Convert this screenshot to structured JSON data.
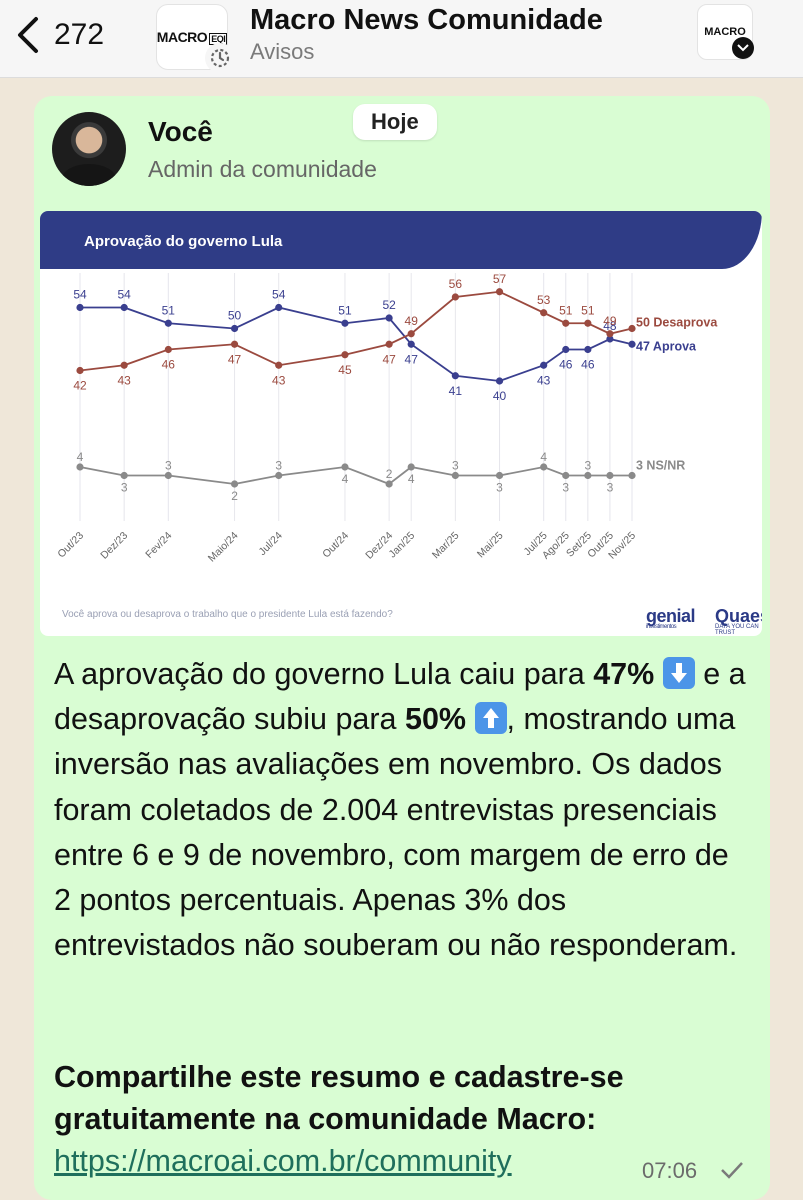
{
  "header": {
    "back_count": "272",
    "title": "Macro News Comunidade",
    "subtitle": "Avisos",
    "logo_text": "MACRO",
    "logo_badge": "EQI"
  },
  "message": {
    "sender": "Você",
    "role": "Admin da comunidade",
    "date_pill": "Hoje",
    "body_parts": [
      "A aprovação do governo Lula caiu para ",
      "47%",
      " e a desaprovação subiu para ",
      "50%",
      ", mostrando uma inversão nas avaliações em novembro. Os dados foram coletados de 2.004 entrevistas presenciais entre 6 e 9 de novembro, com margem de erro de 2 pontos percentuais. Apenas 3% dos entrevistados não souberam ou não responderam."
    ],
    "cta": "Compartilhe este resumo e cadastre-se gratuitamente na comunidade Macro:",
    "link": "https://macroai.com.br/community",
    "time": "07:06",
    "accent_bubble": "#d9fdd3",
    "link_color": "#1f6f5c"
  },
  "chart_data": {
    "type": "line",
    "title": "Aprovação do governo Lula",
    "question": "Você aprova ou desaprova o trabalho que o presidente Lula está fazendo?",
    "brand_left": "genial",
    "brand_left_sub": "investimentos",
    "brand_right": "Quaest",
    "brand_right_sub": "DATA YOU CAN TRUST",
    "categories": [
      "Out/23",
      "Dez/23",
      "Fev/24",
      "Maio/24",
      "Jul/24",
      "Out/24",
      "Dez/24",
      "Jan/25",
      "Mar/25",
      "Mai/25",
      "Jul/25",
      "Ago/25",
      "Set/25",
      "Out/25",
      "Nov/25"
    ],
    "x": [
      0,
      2,
      4,
      7,
      9,
      12,
      14,
      15,
      17,
      19,
      21,
      22,
      23,
      24,
      25
    ],
    "series": [
      {
        "name": "Aprova",
        "end_label": "47 Aprova",
        "color": "#3a3f8f",
        "values": [
          54,
          54,
          51,
          50,
          54,
          51,
          52,
          47,
          41,
          40,
          43,
          46,
          46,
          48,
          47
        ]
      },
      {
        "name": "Desaprova",
        "end_label": "50 Desaprova",
        "color": "#9b4a3f",
        "values": [
          42,
          43,
          46,
          47,
          43,
          45,
          47,
          49,
          56,
          57,
          53,
          51,
          51,
          49,
          50
        ]
      },
      {
        "name": "NS/NR",
        "end_label": "3 NS/NR",
        "color": "#8a8a8a",
        "values": [
          4,
          3,
          3,
          2,
          3,
          4,
          2,
          4,
          3,
          3,
          4,
          3,
          3,
          3,
          3
        ]
      }
    ],
    "value_labels": [
      [
        "54",
        "54",
        "51",
        "50",
        "54",
        "51",
        "52",
        "47",
        "41",
        "40",
        "43",
        "46",
        "46",
        "48",
        ""
      ],
      [
        "42",
        "43",
        "46",
        "47",
        "43",
        "45",
        "47",
        "49",
        "56",
        "57",
        "53",
        "51",
        "51",
        "49",
        ""
      ],
      [
        "4",
        "3",
        "3",
        "2",
        "3",
        "4",
        "2",
        "4",
        "3",
        "3",
        "4",
        "3",
        "3",
        "3",
        ""
      ]
    ],
    "ylim": [
      0,
      60
    ],
    "grid": "vertical"
  }
}
